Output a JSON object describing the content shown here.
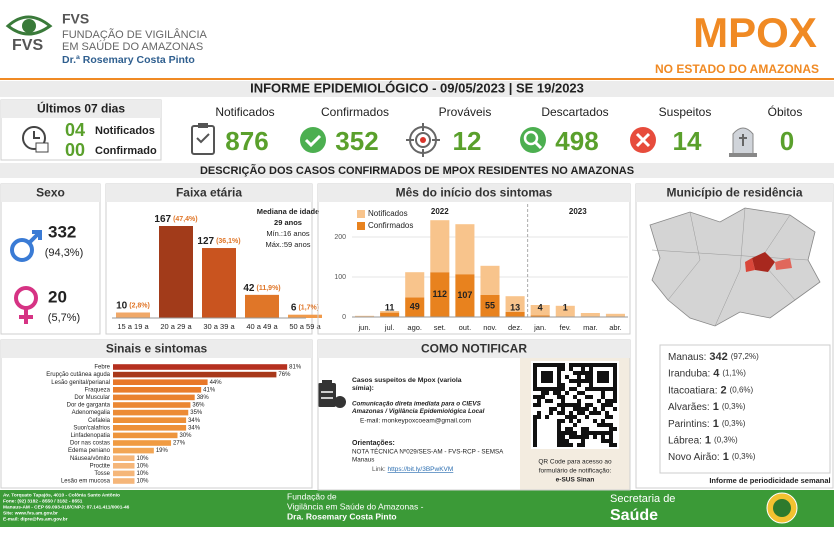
{
  "header": {
    "org": "FVS",
    "org_line1": "FUNDAÇÃO DE VIGILÂNCIA",
    "org_line2": "EM SAÚDE DO AMAZONAS",
    "director": "Dr.ª Rosemary Costa Pinto",
    "title": "MPOX",
    "subtitle": "NO ESTADO DO AMAZONAS"
  },
  "report_title": "INFORME EPIDEMIOLÓGICO - 09/05/2023 | SE 19/2023",
  "last_days": {
    "title": "Últimos 07 dias",
    "rows": [
      {
        "value": "04",
        "label": "Notificados"
      },
      {
        "value": "00",
        "label": "Confirmado"
      }
    ]
  },
  "kpis": [
    {
      "label": "Notificados",
      "value": 876
    },
    {
      "label": "Confirmados",
      "value": 352
    },
    {
      "label": "Prováveis",
      "value": 12
    },
    {
      "label": "Descartados",
      "value": 498
    },
    {
      "label": "Suspeitos",
      "value": 14
    },
    {
      "label": "Óbitos",
      "value": 0
    }
  ],
  "section_title": "DESCRIÇÃO DOS CASOS CONFIRMADOS DE MPOX RESIDENTES NO AMAZONAS",
  "sex": {
    "title": "Sexo",
    "rows": [
      {
        "value": 332,
        "percent": "(94,3%)"
      },
      {
        "value": 20,
        "percent": "(5,7%)"
      }
    ]
  },
  "chart_data": [
    {
      "type": "bar",
      "title": "Faixa etária",
      "categories": [
        "15 a 19 a",
        "20 a 29 a",
        "30 a 39 a",
        "40 a 49 a",
        "50 a 59 a"
      ],
      "values": [
        10,
        167,
        127,
        42,
        6
      ],
      "percent_labels": [
        "(2,8%)",
        "(47,4%)",
        "(36,1%)",
        "(11,9%)",
        "(1,7%)"
      ],
      "colors": [
        "#f0a868",
        "#a23b1a",
        "#c9541f",
        "#e07628",
        "#f19a4a"
      ],
      "annotation": [
        "Mediana de idade",
        "29 anos",
        "Mín.:16 anos",
        "Máx.:59 anos"
      ]
    },
    {
      "type": "stacked_bar",
      "title": "Mês do início dos sintomas",
      "categories": [
        "jun.",
        "jul.",
        "ago.",
        "set.",
        "out.",
        "nov.",
        "dez.",
        "jan.",
        "fev.",
        "mar.",
        "abr."
      ],
      "groups": [
        "2022",
        "2023"
      ],
      "series": [
        {
          "name": "Notificados",
          "color": "#f8c48c",
          "values": [
            3,
            4,
            63,
            130,
            125,
            73,
            39,
            26,
            27,
            10,
            8
          ]
        },
        {
          "name": "Confirmados",
          "color": "#e8821e",
          "values": [
            0,
            11,
            49,
            112,
            107,
            55,
            13,
            4,
            1,
            0,
            0
          ]
        }
      ],
      "ylim": [
        0,
        270
      ],
      "yticks": [
        0,
        100,
        200
      ],
      "grid": true,
      "legend": "upper-left"
    },
    {
      "type": "hbar",
      "title": "Sinais e sintomas",
      "categories": [
        "Febre",
        "Erupção cutânea aguda",
        "Lesão genital/perianal",
        "Fraqueza",
        "Dor Muscular",
        "Dor de garganta",
        "Adenomegalia",
        "Cefaleia",
        "Suor/calafrios",
        "Linfadenopatia",
        "Dor nas costas",
        "Edema peniano",
        "Náusea/vômito",
        "Proctite",
        "Tosse",
        "Lesão em mucosa"
      ],
      "values": [
        81,
        76,
        44,
        41,
        38,
        36,
        35,
        34,
        34,
        30,
        27,
        19,
        10,
        10,
        10,
        10
      ],
      "value_labels": [
        "81%",
        "76%",
        "44%",
        "41%",
        "38%",
        "36%",
        "35%",
        "34%",
        "34%",
        "30%",
        "27%",
        "19%",
        "10%",
        "10%",
        "10%",
        "10%"
      ],
      "colors": [
        "#b5301f",
        "#a8381a",
        "#e8782a",
        "#e97d2c",
        "#ea822f",
        "#eb8732",
        "#ec8b35",
        "#ed9038",
        "#ed9038",
        "#ee953c",
        "#f09b42",
        "#f2a655",
        "#f5b679",
        "#f5b679",
        "#f5b679",
        "#f5b679"
      ],
      "xlim": [
        0,
        100
      ]
    }
  ],
  "municipality": {
    "title": "Município de residência",
    "rows": [
      {
        "name": "Manaus:",
        "value": 342,
        "percent": "(97,2%)"
      },
      {
        "name": "Iranduba:",
        "value": 4,
        "percent": "(1,1%)"
      },
      {
        "name": "Itacoatiara:",
        "value": 2,
        "percent": "(0,6%)"
      },
      {
        "name": "Alvarães:",
        "value": 1,
        "percent": "(0,3%)"
      },
      {
        "name": "Parintins:",
        "value": 1,
        "percent": "(0,3%)"
      },
      {
        "name": "Lábrea:",
        "value": 1,
        "percent": "(0,3%)"
      },
      {
        "name": "Novo Airão:",
        "value": 1,
        "percent": "(0,3%)"
      }
    ],
    "note": "Informe de periodicidade semanal"
  },
  "notify": {
    "title": "COMO NOTIFICAR",
    "cases": [
      "Casos suspeitos de Mpox (variola",
      "símia):"
    ],
    "channel": [
      "Comunicação direta imediata para o CIEVS",
      "Amazonas / Vigilância Epidemiológica Local"
    ],
    "email": "E-mail: monkeypoxcoeam@gmail.com",
    "guidance_title": "Orientações:",
    "guidance": [
      "NOTA TÉCNICA Nº029/SES-AM - FVS-RCP - SEMSA",
      "Manaus"
    ],
    "link_label": "Link: ",
    "link": "https://bit.ly/3BPwKVM",
    "qr_caption": [
      "QR Code para acesso ao",
      "formulário de notificação:",
      "e-SUS Sinan"
    ]
  },
  "footer": {
    "address": [
      "Av. Torquato Tapajós, 4010 - Colônia Santo Antônio",
      "Fone: (92) 3182 - 8550 / 3182 - 8551",
      "Manaus-AM - CEP 69.093-018/CNPJ: 07.141.411/0001-46",
      "Site: www.fvs.am.gov.br",
      "E-mail: dipre@fvs.am.gov.br"
    ],
    "org": [
      "Fundação de",
      "Vigilância em Saúde do Amazonas -",
      "Dra. Rosemary Costa Pinto"
    ],
    "secretariat": [
      "Secretaria de",
      "Saúde"
    ]
  }
}
